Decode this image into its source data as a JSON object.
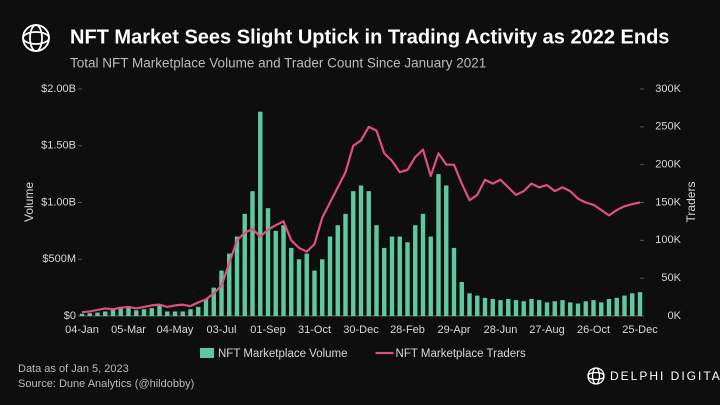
{
  "chart_data": {
    "type": "bar-line",
    "title": "NFT Market Sees Slight Uptick in Trading Activity as  2022 Ends",
    "subtitle": "Total NFT Marketplace Volume and Trader Count Since January 2021",
    "y_label": "Volume",
    "y2_label": "Traders",
    "categories": [
      "04-Jan",
      null,
      null,
      null,
      null,
      null,
      "05-Mar",
      null,
      null,
      null,
      null,
      null,
      "04-May",
      null,
      null,
      null,
      null,
      null,
      "03-Jul",
      null,
      null,
      null,
      null,
      null,
      "01-Sep",
      null,
      null,
      null,
      null,
      null,
      "31-Oct",
      null,
      null,
      null,
      null,
      null,
      "30-Dec",
      null,
      null,
      null,
      null,
      null,
      "28-Feb",
      null,
      null,
      null,
      null,
      null,
      "29-Apr",
      null,
      null,
      null,
      null,
      null,
      "28-Jun",
      null,
      null,
      null,
      null,
      null,
      "27-Aug",
      null,
      null,
      null,
      null,
      null,
      "26-Oct",
      null,
      null,
      null,
      null,
      null,
      "25-Dec"
    ],
    "series": [
      {
        "name": "NFT Marketplace Volume",
        "color": "#5ec9a0",
        "axis": "y",
        "values": [
          20000000,
          25000000,
          30000000,
          40000000,
          60000000,
          70000000,
          80000000,
          50000000,
          60000000,
          70000000,
          100000000,
          40000000,
          40000000,
          40000000,
          60000000,
          80000000,
          150000000,
          250000000,
          400000000,
          550000000,
          700000000,
          900000000,
          1100000000,
          1800000000,
          950000000,
          750000000,
          800000000,
          600000000,
          500000000,
          550000000,
          400000000,
          500000000,
          700000000,
          800000000,
          900000000,
          1100000000,
          1150000000,
          1100000000,
          800000000,
          600000000,
          700000000,
          700000000,
          650000000,
          800000000,
          900000000,
          700000000,
          1250000000,
          1150000000,
          600000000,
          300000000,
          200000000,
          180000000,
          160000000,
          150000000,
          140000000,
          150000000,
          140000000,
          130000000,
          150000000,
          140000000,
          120000000,
          130000000,
          140000000,
          120000000,
          110000000,
          130000000,
          140000000,
          120000000,
          150000000,
          160000000,
          180000000,
          200000000,
          210000000
        ]
      },
      {
        "name": "NFT Marketplace Traders",
        "color": "#e0507e",
        "axis": "y2",
        "values": [
          5000,
          6000,
          8000,
          10000,
          9000,
          11000,
          12000,
          10000,
          12000,
          14000,
          15000,
          12000,
          14000,
          15000,
          13000,
          18000,
          22000,
          30000,
          40000,
          70000,
          100000,
          110000,
          115000,
          105000,
          114000,
          120000,
          125000,
          100000,
          90000,
          85000,
          95000,
          130000,
          150000,
          170000,
          190000,
          225000,
          232000,
          250000,
          245000,
          215000,
          205000,
          190000,
          193000,
          210000,
          220000,
          185000,
          215000,
          200000,
          200000,
          175000,
          153000,
          160000,
          180000,
          175000,
          180000,
          170000,
          160000,
          165000,
          175000,
          170000,
          173000,
          165000,
          170000,
          165000,
          155000,
          150000,
          147000,
          140000,
          133000,
          140000,
          145000,
          148000,
          150000
        ]
      }
    ],
    "ylim": [
      0,
      2000000000
    ],
    "yticks": [
      {
        "value": 0,
        "label": "$0"
      },
      {
        "value": 500000000,
        "label": "$500M"
      },
      {
        "value": 1000000000,
        "label": "$1.00B"
      },
      {
        "value": 1500000000,
        "label": "$1.50B"
      },
      {
        "value": 2000000000,
        "label": "$2.00B"
      }
    ],
    "y2lim": [
      0,
      300000
    ],
    "y2ticks": [
      {
        "value": 0,
        "label": "0K"
      },
      {
        "value": 50000,
        "label": "50K"
      },
      {
        "value": 100000,
        "label": "100K"
      },
      {
        "value": 150000,
        "label": "150K"
      },
      {
        "value": 200000,
        "label": "200K"
      },
      {
        "value": 250000,
        "label": "250K"
      },
      {
        "value": 300000,
        "label": "300K"
      }
    ],
    "grid": false
  },
  "footer": {
    "notes": [
      "Data as of Jan 5, 2023",
      "Source: Dune Analytics (@hildobby)"
    ],
    "brand": "DELPHI DIGITAL"
  }
}
